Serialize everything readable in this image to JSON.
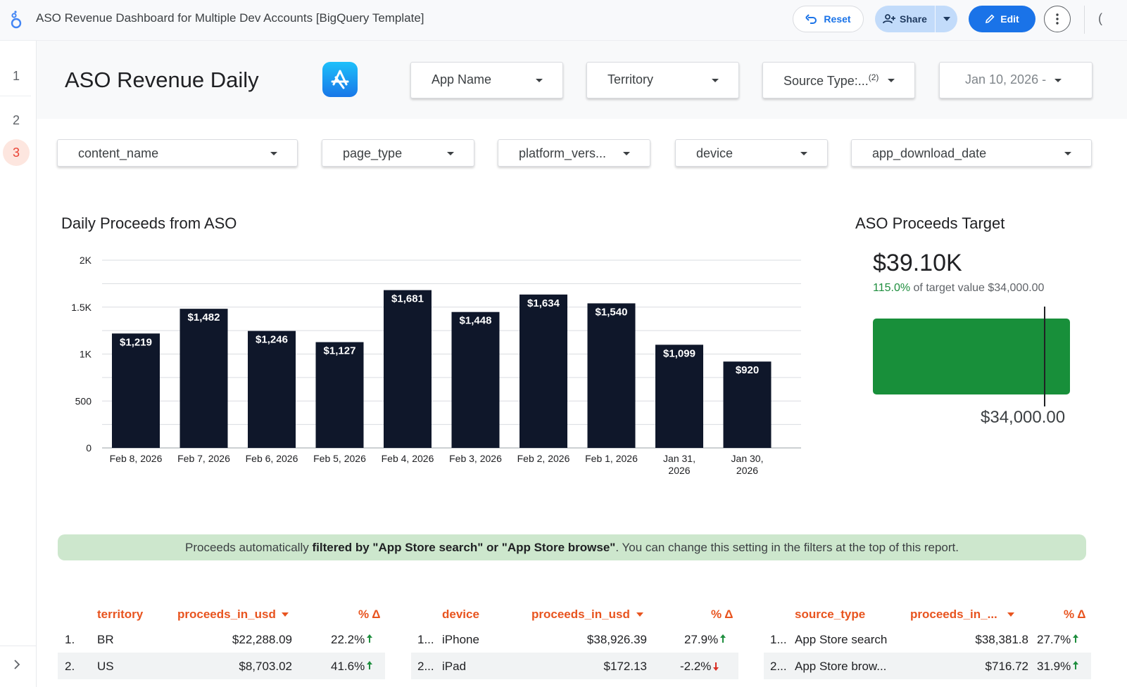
{
  "header": {
    "doc_title": "ASO Revenue Dashboard for Multiple Dev Accounts [BigQuery Template]",
    "reset_label": "Reset",
    "share_label": "Share",
    "edit_label": "Edit"
  },
  "rail": {
    "pages": [
      "1",
      "2",
      "3"
    ],
    "active_page": "3"
  },
  "report": {
    "title": "ASO Revenue Daily",
    "filters_row1": [
      {
        "label": "App Name"
      },
      {
        "label": "Territory"
      },
      {
        "label": "Source Type:...",
        "badge": "(2)"
      },
      {
        "label": "Jan 10, 2026 -"
      }
    ],
    "filters_row2": [
      {
        "label": "content_name"
      },
      {
        "label": "page_type"
      },
      {
        "label": "platform_vers..."
      },
      {
        "label": "device"
      },
      {
        "label": "app_download_date"
      }
    ]
  },
  "chart_data": {
    "type": "bar",
    "title": "Daily Proceeds from ASO",
    "categories": [
      "Feb 8, 2026",
      "Feb 7, 2026",
      "Feb 6, 2026",
      "Feb 5, 2026",
      "Feb 4, 2026",
      "Feb 3, 2026",
      "Feb 2, 2026",
      "Feb 1, 2026",
      "Jan 31, 2026",
      "Jan 30, 2026"
    ],
    "values": [
      1219,
      1482,
      1246,
      1127,
      1681,
      1448,
      1634,
      1540,
      1099,
      920
    ],
    "data_labels": [
      "$1,219",
      "$1,482",
      "$1,246",
      "$1,127",
      "$1,681",
      "$1,448",
      "$1,634",
      "$1,540",
      "$1,099",
      "$920"
    ],
    "yticks": [
      "0",
      "500",
      "1K",
      "1.5K",
      "2K"
    ],
    "ytick_values": [
      0,
      500,
      1000,
      1500,
      2000
    ],
    "ylim": [
      0,
      2000
    ],
    "grid": true,
    "bar_color": "#0f172a"
  },
  "scorecard": {
    "title": "ASO Proceeds Target",
    "value": "$39.10K",
    "pct": "115.0%",
    "sub_text": "of target value $34,000.00",
    "target_label": "$34,000.00",
    "progress_fraction": 1.15,
    "bar_color": "#188f3a"
  },
  "banner": {
    "prefix": "Proceeds automatically ",
    "bold": "filtered by \"App Store search\" or \"App Store browse\"",
    "suffix": ". You can change this setting in the filters at the top of this report."
  },
  "tables": {
    "territory": {
      "headers": [
        "territory",
        "proceeds_in_usd",
        "% Δ"
      ],
      "rows": [
        {
          "idx": "1.",
          "name": "BR",
          "value": "$22,288.09",
          "delta": "22.2%",
          "dir": "up"
        },
        {
          "idx": "2.",
          "name": "US",
          "value": "$8,703.02",
          "delta": "41.6%",
          "dir": "up"
        }
      ]
    },
    "device": {
      "headers": [
        "device",
        "proceeds_in_usd",
        "% Δ"
      ],
      "rows": [
        {
          "idx": "1...",
          "name": "iPhone",
          "value": "$38,926.39",
          "delta": "27.9%",
          "dir": "up"
        },
        {
          "idx": "2...",
          "name": "iPad",
          "value": "$172.13",
          "delta": "-2.2%",
          "dir": "down"
        }
      ]
    },
    "source_type": {
      "headers": [
        "source_type",
        "proceeds_in_...",
        "% Δ"
      ],
      "rows": [
        {
          "idx": "1...",
          "name": "App Store search",
          "value": "$38,381.8",
          "delta": "27.7%",
          "dir": "up"
        },
        {
          "idx": "2...",
          "name": "App Store brow...",
          "value": "$716.72",
          "delta": "31.9%",
          "dir": "up"
        }
      ]
    }
  },
  "colors": {
    "accent_blue": "#1a73e8",
    "header_orange": "#e8541f",
    "positive_green": "#1e8e3e",
    "negative_red": "#d93025"
  }
}
